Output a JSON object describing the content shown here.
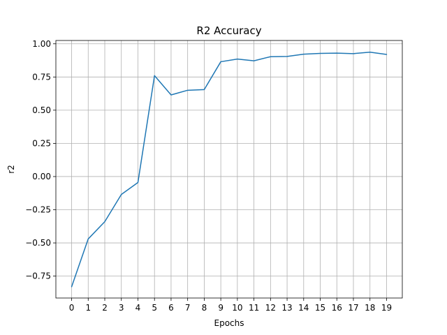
{
  "chart_data": {
    "type": "line",
    "title": "R2 Accuracy",
    "xlabel": "Epochs",
    "ylabel": "r2",
    "x": [
      0,
      1,
      2,
      3,
      4,
      5,
      6,
      7,
      8,
      9,
      10,
      11,
      12,
      13,
      14,
      15,
      16,
      17,
      18,
      19
    ],
    "x_ticks": [
      "0",
      "1",
      "2",
      "3",
      "4",
      "5",
      "6",
      "7",
      "8",
      "9",
      "10",
      "11",
      "12",
      "13",
      "14",
      "15",
      "16",
      "17",
      "18",
      "19"
    ],
    "y_ticks": [
      "−0.75",
      "−0.50",
      "−0.25",
      "0.00",
      "0.25",
      "0.50",
      "0.75",
      "1.00"
    ],
    "xlim": [
      -0.95,
      19.95
    ],
    "ylim": [
      -0.915,
      1.025
    ],
    "grid": true,
    "series": [
      {
        "color": "#1f77b4",
        "values": [
          -0.83,
          -0.47,
          -0.34,
          -0.135,
          -0.045,
          0.76,
          0.615,
          0.65,
          0.655,
          0.865,
          0.885,
          0.872,
          0.903,
          0.905,
          0.922,
          0.928,
          0.93,
          0.926,
          0.937,
          0.92
        ]
      }
    ]
  }
}
